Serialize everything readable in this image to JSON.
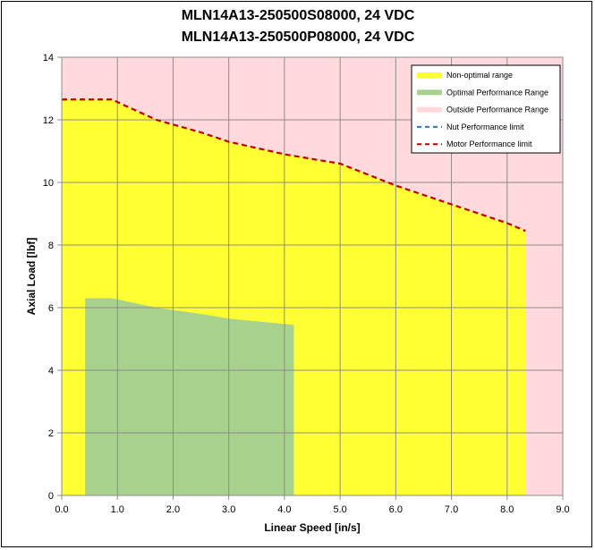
{
  "chart_data": {
    "type": "area",
    "title": "MLN14A13-250500S08000, 24 VDC",
    "subtitle": "MLN14A13-250500P08000, 24 VDC",
    "xlabel": "Linear Speed [in/s]",
    "ylabel": "Axial Load [lbf]",
    "xlim": [
      0,
      9
    ],
    "ylim": [
      0,
      14
    ],
    "x_ticks": [
      "0.0",
      "1.0",
      "2.0",
      "3.0",
      "4.0",
      "5.0",
      "6.0",
      "7.0",
      "8.0",
      "9.0"
    ],
    "y_ticks": [
      "0",
      "2",
      "4",
      "6",
      "8",
      "10",
      "12",
      "14"
    ],
    "grid": true,
    "legend_position": "top-right",
    "background": {
      "name": "Outside Performance Range",
      "color": "#ffd9dc"
    },
    "series": [
      {
        "name": "Non-optimal range",
        "kind": "area",
        "color": "#ffff33",
        "x": [
          0.0,
          0.9,
          1.7,
          2.5,
          3.0,
          4.0,
          5.0,
          6.0,
          7.0,
          8.0,
          8.33
        ],
        "y": [
          12.65,
          12.65,
          12.0,
          11.6,
          11.3,
          10.9,
          10.6,
          9.9,
          9.3,
          8.7,
          8.45
        ]
      },
      {
        "name": "Optimal Performance Range",
        "kind": "area",
        "color": "#a9d18e",
        "x": [
          0.42,
          0.9,
          1.7,
          2.5,
          3.0,
          4.0,
          4.17
        ],
        "y": [
          6.3,
          6.3,
          6.0,
          5.8,
          5.65,
          5.48,
          5.45
        ]
      },
      {
        "name": "Nut Performance limit",
        "kind": "dashed-line",
        "color": "#2e75b6",
        "x": [],
        "y": []
      },
      {
        "name": "Motor Performance limit",
        "kind": "dashed-line",
        "color": "#c00000",
        "x": [
          0.0,
          0.9,
          1.7,
          2.5,
          3.0,
          4.0,
          5.0,
          6.0,
          7.0,
          8.0,
          8.33
        ],
        "y": [
          12.65,
          12.65,
          12.0,
          11.6,
          11.3,
          10.9,
          10.6,
          9.9,
          9.3,
          8.7,
          8.45
        ]
      }
    ],
    "legend": [
      {
        "label": "Non-optimal range",
        "swatch": "bar",
        "color": "#ffff33"
      },
      {
        "label": "Optimal Performance Range",
        "swatch": "bar",
        "color": "#a9d18e"
      },
      {
        "label": "Outside Performance Range",
        "swatch": "bar",
        "color": "#ffd9dc"
      },
      {
        "label": "Nut Performance limit",
        "swatch": "dash",
        "color": "#2e75b6"
      },
      {
        "label": "Motor Performance limit",
        "swatch": "dash",
        "color": "#c00000"
      }
    ]
  }
}
